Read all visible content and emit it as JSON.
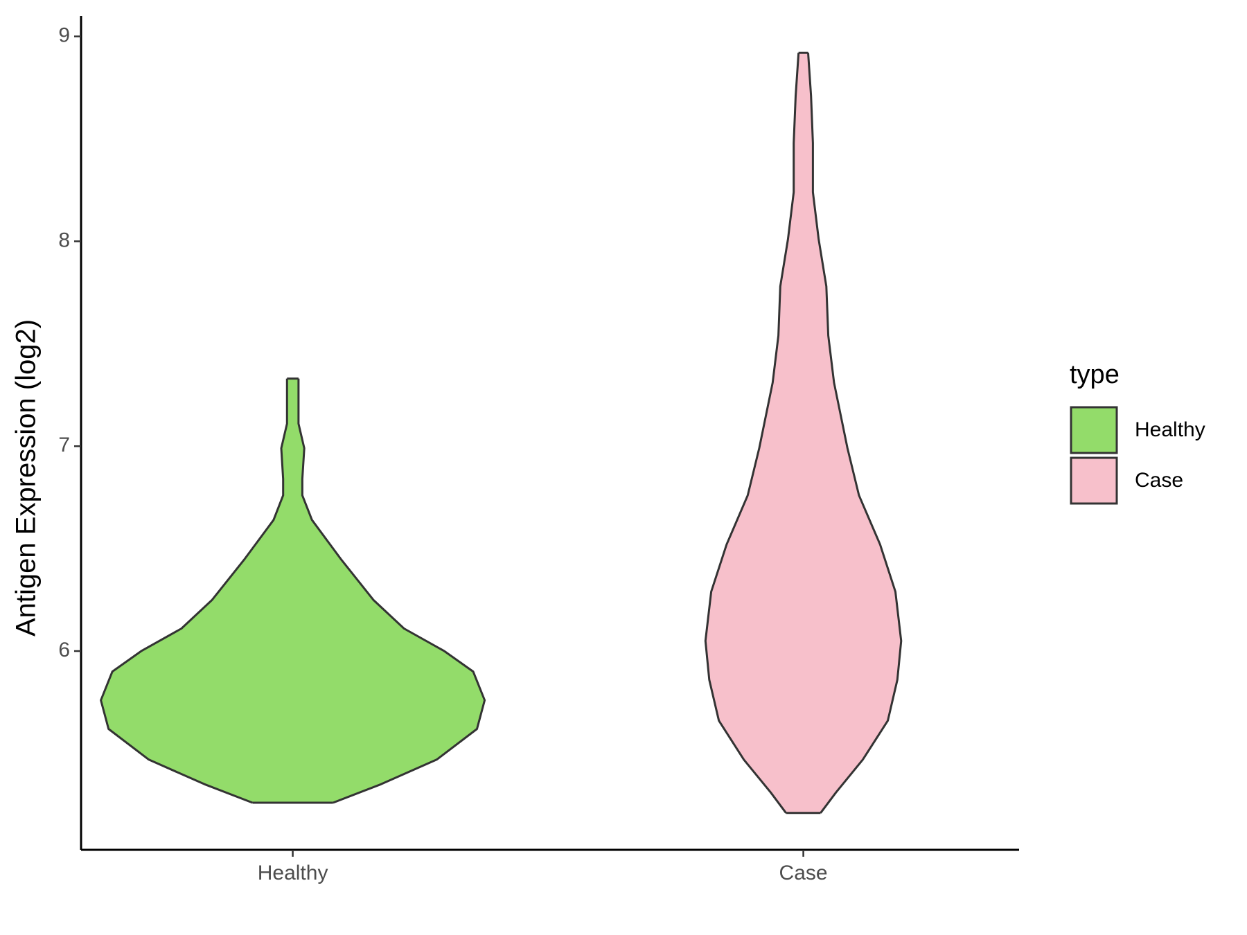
{
  "chart_data": {
    "type": "violin",
    "y_label": "Antigen Expression (log2)",
    "categories": [
      "Healthy",
      "Case"
    ],
    "legend_title": "type",
    "legend_position": "right",
    "series": [
      {
        "name": "Healthy",
        "color": "#93dc6a",
        "y": [
          5.26,
          5.35,
          5.47,
          5.62,
          5.76,
          5.9,
          6.0,
          6.11,
          6.25,
          6.45,
          6.64,
          6.76,
          6.84,
          6.99,
          7.11,
          7.21,
          7.33
        ],
        "density": [
          0.21,
          0.46,
          0.75,
          0.96,
          1.0,
          0.94,
          0.79,
          0.58,
          0.42,
          0.25,
          0.1,
          0.05,
          0.05,
          0.06,
          0.03,
          0.03,
          0.03
        ]
      },
      {
        "name": "Case",
        "color": "#f7c0cb",
        "y": [
          5.21,
          5.31,
          5.47,
          5.66,
          5.86,
          6.05,
          6.29,
          6.52,
          6.76,
          6.99,
          7.31,
          7.54,
          7.78,
          8.01,
          8.24,
          8.48,
          8.71,
          8.92
        ],
        "density": [
          0.09,
          0.17,
          0.31,
          0.44,
          0.49,
          0.51,
          0.48,
          0.4,
          0.29,
          0.23,
          0.16,
          0.13,
          0.12,
          0.08,
          0.05,
          0.05,
          0.04,
          0.025
        ]
      }
    ],
    "ylim": [
      5.03,
      9.1
    ],
    "yticks": [
      6,
      7,
      8,
      9
    ],
    "grid": false
  }
}
